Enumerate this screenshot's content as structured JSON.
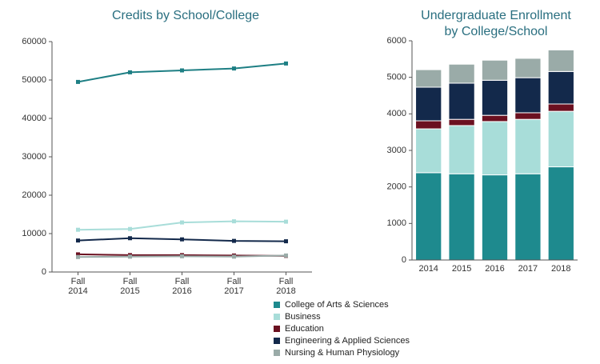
{
  "chart_data": [
    {
      "type": "line",
      "title": "Credits by School/College",
      "categories": [
        "Fall 2014",
        "Fall 2015",
        "Fall 2016",
        "Fall 2017",
        "Fall 2018"
      ],
      "ylim": [
        0,
        60000
      ],
      "yticks": [
        0,
        10000,
        20000,
        30000,
        40000,
        50000,
        60000
      ],
      "grid": false,
      "series": [
        {
          "name": "College of Arts & Sciences",
          "color": "#1e7f84",
          "values": [
            49500,
            52000,
            52500,
            53000,
            54300
          ]
        },
        {
          "name": "Business",
          "color": "#a8ddd9",
          "values": [
            11000,
            11200,
            12900,
            13200,
            13100
          ]
        },
        {
          "name": "Education",
          "color": "#6b1020",
          "values": [
            4600,
            4400,
            4400,
            4300,
            4200
          ]
        },
        {
          "name": "Engineering & Applied Sciences",
          "color": "#13294b",
          "values": [
            8200,
            8800,
            8500,
            8100,
            8000
          ]
        },
        {
          "name": "Nursing & Human Physiology",
          "color": "#9aaba8",
          "values": [
            3900,
            4000,
            4100,
            4000,
            4300
          ]
        }
      ]
    },
    {
      "type": "stacked-bar",
      "title": [
        "Undergraduate Enrollment",
        "by College/School"
      ],
      "categories": [
        "2014",
        "2015",
        "2016",
        "2017",
        "2018"
      ],
      "ylim": [
        0,
        6000
      ],
      "yticks": [
        0,
        1000,
        2000,
        3000,
        4000,
        5000,
        6000
      ],
      "grid": false,
      "series": [
        {
          "name": "College of Arts & Sciences",
          "color": "#1e8a8e",
          "values": [
            2390,
            2360,
            2330,
            2360,
            2550
          ]
        },
        {
          "name": "Business",
          "color": "#a8ddd9",
          "values": [
            1200,
            1320,
            1460,
            1490,
            1520
          ]
        },
        {
          "name": "Education",
          "color": "#6b1020",
          "values": [
            220,
            170,
            170,
            180,
            200
          ]
        },
        {
          "name": "Engineering & Applied Sciences",
          "color": "#13294b",
          "values": [
            920,
            990,
            960,
            960,
            890
          ]
        },
        {
          "name": "Nursing & Human Physiology",
          "color": "#9aaba8",
          "values": [
            480,
            520,
            550,
            530,
            590
          ]
        }
      ]
    }
  ]
}
